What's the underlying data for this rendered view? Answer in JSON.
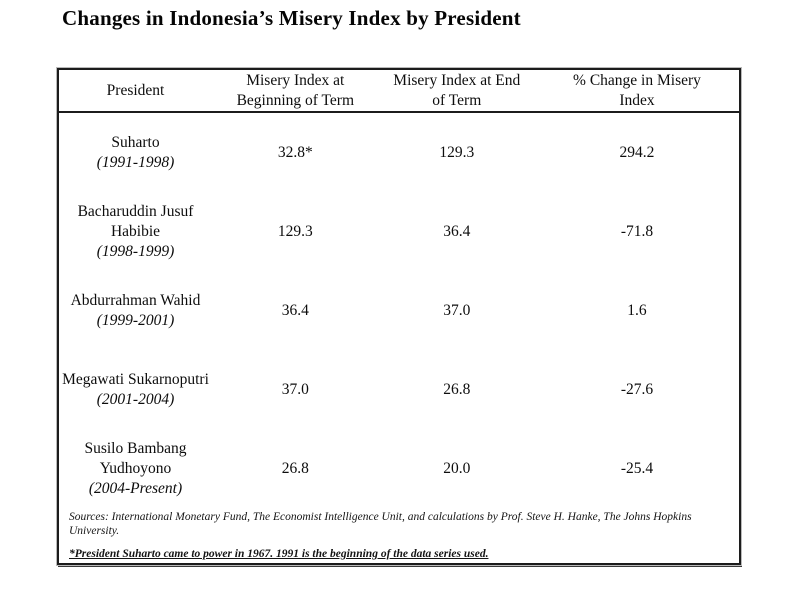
{
  "page": {
    "title": "Changes in Indonesia’s Misery Index by President"
  },
  "table": {
    "headers": [
      {
        "lines": [
          "President"
        ]
      },
      {
        "lines": [
          "Misery Index at",
          "Beginning of Term"
        ]
      },
      {
        "lines": [
          "Misery Index at End",
          "of Term"
        ]
      },
      {
        "lines": [
          "% Change in Misery",
          "Index"
        ]
      }
    ],
    "rows": [
      {
        "president": "Suharto",
        "years": "(1991-1998)",
        "begin": "32.8*",
        "end": "129.3",
        "change": "294.2"
      },
      {
        "president": "Bacharuddin Jusuf Habibie",
        "years": "(1998-1999)",
        "begin": "129.3",
        "end": "36.4",
        "change": "-71.8"
      },
      {
        "president": "Abdurrahman Wahid",
        "years": "(1999-2001)",
        "begin": "36.4",
        "end": "37.0",
        "change": "1.6"
      },
      {
        "president": "Megawati Sukarnoputri",
        "years": "(2001-2004)",
        "begin": "37.0",
        "end": "26.8",
        "change": "-27.6"
      },
      {
        "president": "Susilo Bambang Yudhoyono",
        "years": "(2004-Present)",
        "begin": "26.8",
        "end": "20.0",
        "change": "-25.4"
      }
    ],
    "sources": "Sources: International Monetary Fund, The Economist Intelligence Unit, and calculations by Prof. Steve H. Hanke, The Johns Hopkins University.",
    "footnote": "*President Suharto came to power in 1967. 1991 is the beginning of the data series used."
  }
}
